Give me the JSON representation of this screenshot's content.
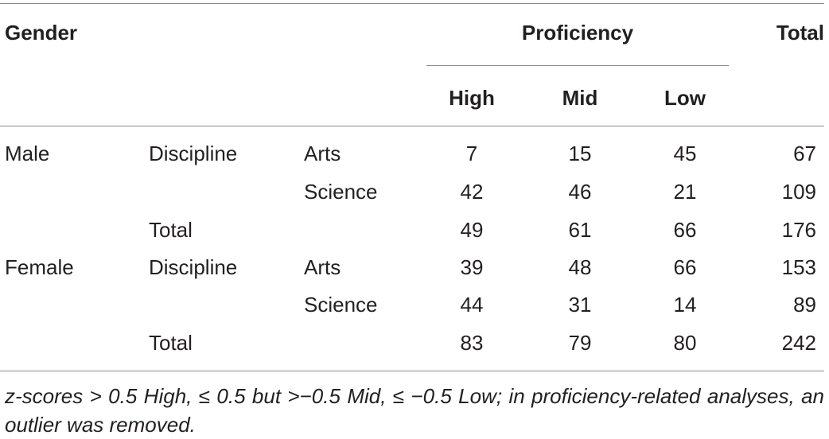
{
  "headers": {
    "gender": "Gender",
    "proficiency": "Proficiency",
    "total": "Total",
    "levels": [
      "High",
      "Mid",
      "Low"
    ]
  },
  "rows": [
    {
      "gender": "Male",
      "group": "Discipline",
      "sub": "Arts",
      "high": "7",
      "mid": "15",
      "low": "45",
      "total": "67"
    },
    {
      "gender": "",
      "group": "",
      "sub": "Science",
      "high": "42",
      "mid": "46",
      "low": "21",
      "total": "109"
    },
    {
      "gender": "",
      "group": "Total",
      "sub": "",
      "high": "49",
      "mid": "61",
      "low": "66",
      "total": "176"
    },
    {
      "gender": "Female",
      "group": "Discipline",
      "sub": "Arts",
      "high": "39",
      "mid": "48",
      "low": "66",
      "total": "153"
    },
    {
      "gender": "",
      "group": "",
      "sub": "Science",
      "high": "44",
      "mid": "31",
      "low": "14",
      "total": "89"
    },
    {
      "gender": "",
      "group": "Total",
      "sub": "",
      "high": "83",
      "mid": "79",
      "low": "80",
      "total": "242"
    }
  ],
  "footnote": "z-scores > 0.5 High, ≤ 0.5 but >−0.5 Mid, ≤ −0.5 Low; in proficiency-related analyses, an outlier was removed."
}
